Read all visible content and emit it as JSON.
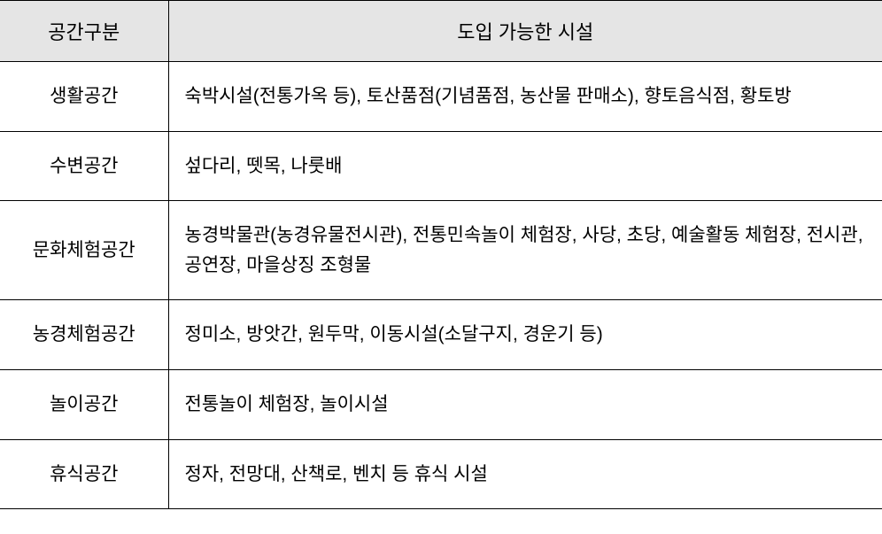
{
  "table": {
    "type": "table",
    "columns": [
      {
        "label": "공간구분",
        "width": 190,
        "align": "center"
      },
      {
        "label": "도입 가능한 시설",
        "width": "auto",
        "align": "center"
      }
    ],
    "header_bg_color": "#e5e5e5",
    "border_color": "#000000",
    "background_color": "#ffffff",
    "font_size_header": 22,
    "font_size_cell": 21,
    "rows": [
      {
        "category": "생활공간",
        "content": "숙박시설(전통가옥 등), 토산품점(기념품점, 농산물 판매소), 향토음식점, 황토방"
      },
      {
        "category": "수변공간",
        "content": "섶다리, 뗏목, 나룻배"
      },
      {
        "category": "문화체험공간",
        "content": "농경박물관(농경유물전시관), 전통민속놀이 체험장, 사당, 초당, 예술활동 체험장, 전시관, 공연장, 마을상징 조형물"
      },
      {
        "category": "농경체험공간",
        "content": "정미소, 방앗간, 원두막, 이동시설(소달구지, 경운기 등)"
      },
      {
        "category": "놀이공간",
        "content": "전통놀이 체험장, 놀이시설"
      },
      {
        "category": "휴식공간",
        "content": "정자, 전망대, 산책로,  벤치 등 휴식 시설"
      }
    ]
  }
}
